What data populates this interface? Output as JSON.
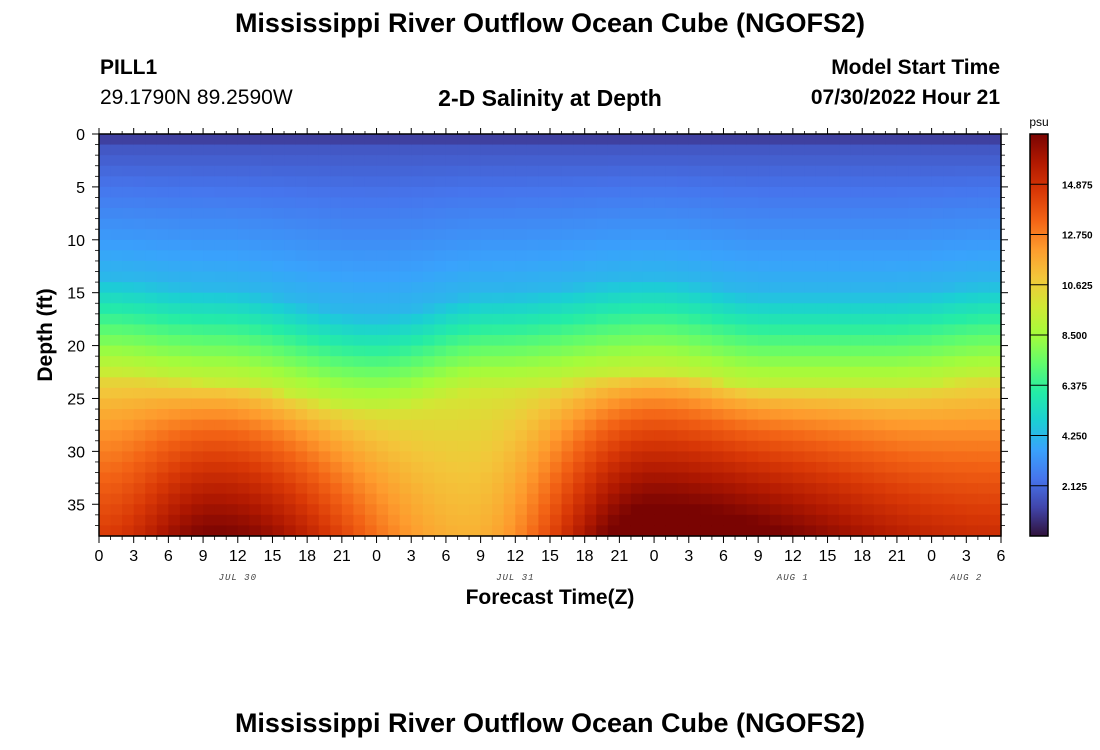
{
  "header": {
    "title": "Mississippi River Outflow Ocean Cube (NGOFS2)",
    "station_name": "PILL1",
    "station_coords": "29.1790N  89.2590W",
    "subtitle": "2-D Salinity at Depth",
    "model_label": "Model Start Time",
    "model_time": "07/30/2022 Hour 21"
  },
  "footer": {
    "title": "Mississippi River Outflow Ocean Cube (NGOFS2)"
  },
  "chart_data": {
    "type": "heatmap",
    "title": "2-D Salinity at Depth",
    "xlabel": "Forecast Time(Z)",
    "ylabel": "Depth (ft)",
    "x_tick_labels": [
      "0",
      "3",
      "6",
      "9",
      "12",
      "15",
      "18",
      "21",
      "0",
      "3",
      "6",
      "9",
      "12",
      "15",
      "18",
      "21",
      "0",
      "3",
      "6",
      "9",
      "12",
      "15",
      "18",
      "21",
      "0",
      "3",
      "6"
    ],
    "x_range_hours": [
      0,
      78
    ],
    "date_labels": [
      {
        "label": "JUL 30",
        "hour": 12
      },
      {
        "label": "JUL 31",
        "hour": 36
      },
      {
        "label": "AUG 1",
        "hour": 60
      },
      {
        "label": "AUG 2",
        "hour": 75
      }
    ],
    "y_tick_labels": [
      "0",
      "5",
      "10",
      "15",
      "20",
      "25",
      "30",
      "35"
    ],
    "y_range_ft": [
      0,
      38
    ],
    "y_inverted": true,
    "colorbar": {
      "unit": "psu",
      "range": [
        0,
        17
      ],
      "tick_labels": [
        "2.125",
        "4.250",
        "6.375",
        "8.500",
        "10.625",
        "12.750",
        "14.875"
      ],
      "colormap": [
        "#30123b",
        "#4145ab",
        "#4675ed",
        "#39a2fc",
        "#1bcfd4",
        "#24eca6",
        "#61fc6c",
        "#a4fc3b",
        "#d1e834",
        "#f3c63a",
        "#fe9b2d",
        "#f36315",
        "#d93806",
        "#b11901",
        "#7a0402"
      ]
    },
    "field_model": {
      "description": "salinity (psu) vs forecast hour and depth (ft)",
      "bottom_salinity_peaks": [
        {
          "hour": 10,
          "value": 17.0
        },
        {
          "hour": 48,
          "value": 18.0
        }
      ],
      "bottom_salinity_troughs": [
        {
          "hour": 32,
          "value": 11.5
        },
        {
          "hour": 78,
          "value": 15.0
        }
      ],
      "surface_salinity": 0.8,
      "mid_depth_salinity": 3.0,
      "halocline_depth_ft": [
        {
          "hour": 0,
          "value": 20.5
        },
        {
          "hour": 10,
          "value": 21.5
        },
        {
          "hour": 24,
          "value": 24.0
        },
        {
          "hour": 34,
          "value": 22.0
        },
        {
          "hour": 48,
          "value": 20.5
        },
        {
          "hour": 58,
          "value": 22.0
        },
        {
          "hour": 68,
          "value": 22.0
        },
        {
          "hour": 78,
          "value": 21.0
        }
      ]
    }
  }
}
